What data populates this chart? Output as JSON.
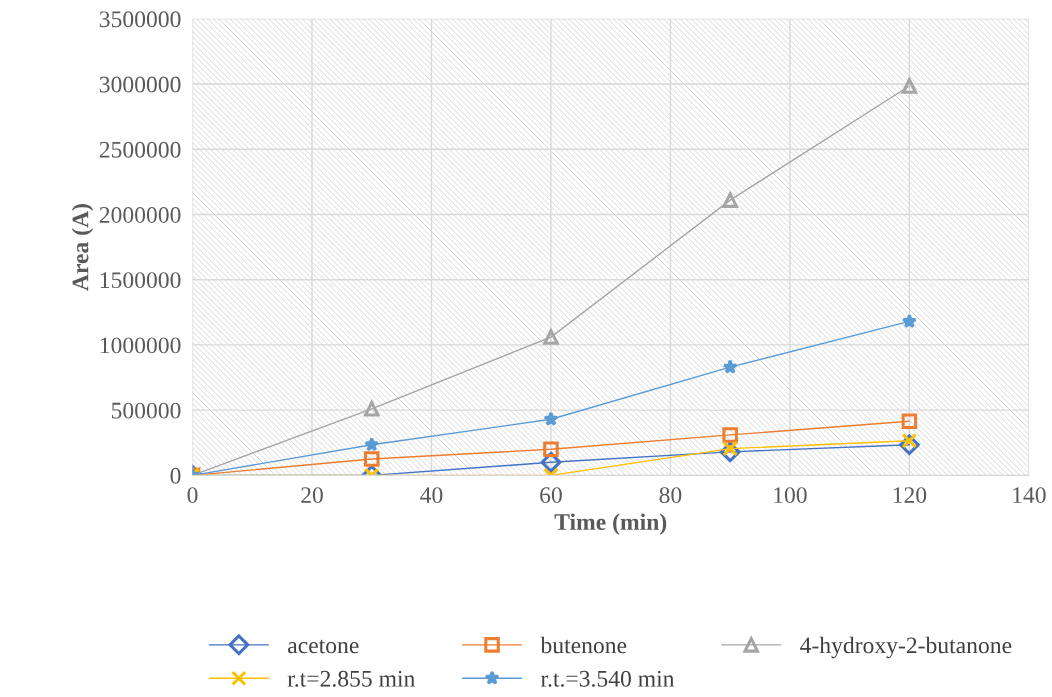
{
  "chart_data": {
    "type": "line",
    "xlabel": "Time (min)",
    "ylabel": "Area (A)",
    "x": [
      0,
      30,
      60,
      90,
      120
    ],
    "series": [
      {
        "name": "acetone",
        "color": "#4472c4",
        "marker": "diamond",
        "values": [
          0,
          0,
          100000,
          180000,
          235000
        ]
      },
      {
        "name": "butenone",
        "color": "#ed7d31",
        "marker": "square",
        "values": [
          0,
          125000,
          200000,
          310000,
          415000
        ]
      },
      {
        "name": "4-hydroxy-2-butanone",
        "color": "#a5a5a5",
        "marker": "triangle",
        "values": [
          0,
          510000,
          1060000,
          2110000,
          2985000
        ]
      },
      {
        "name": "r.t=2.855 min",
        "color": "#ffc000",
        "marker": "cross",
        "values": [
          0,
          0,
          0,
          205000,
          265000
        ]
      },
      {
        "name": "r.t.=3.540 min",
        "color": "#5b9bd5",
        "marker": "star",
        "values": [
          0,
          235000,
          430000,
          830000,
          1180000
        ]
      }
    ],
    "xlim": [
      0,
      140
    ],
    "xticks": [
      0,
      20,
      40,
      60,
      80,
      100,
      120,
      140
    ],
    "ylim": [
      0,
      3500000
    ],
    "yticks": [
      0,
      500000,
      1000000,
      1500000,
      2000000,
      2500000,
      3000000,
      3500000
    ],
    "grid": true,
    "legend": "bottom"
  }
}
